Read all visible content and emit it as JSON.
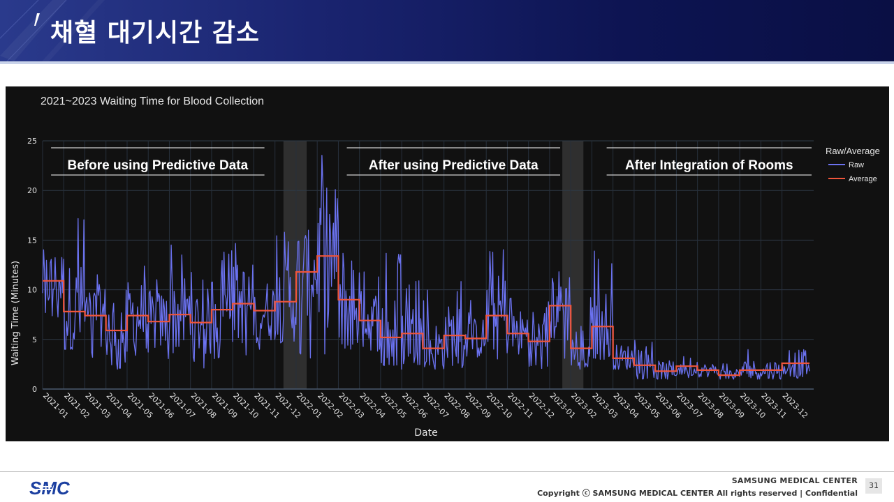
{
  "slide": {
    "title": "채혈 대기시간 감소",
    "footer_company": "SAMSUNG MEDICAL CENTER",
    "footer_copyright": "Copyright ⓒ SAMSUNG MEDICAL CENTER All rights reserved  |  Confidential",
    "page_number": "31",
    "logo_text": "SMC",
    "colors": {
      "banner": "#1a2470",
      "raw": "#6b72f0",
      "average": "#ef553b",
      "chart_bg": "#111111"
    }
  },
  "chart_data": {
    "type": "line",
    "title": "2021~2023 Waiting Time for Blood Collection",
    "xlabel": "Date",
    "ylabel": "Waiting Time (Minutes)",
    "ylim": [
      0,
      25
    ],
    "yticks": [
      0,
      5,
      10,
      15,
      20,
      25
    ],
    "xlim_months": [
      0,
      36.5
    ],
    "xticks": [
      "2021-01",
      "2021-02",
      "2021-03",
      "2021-04",
      "2021-05",
      "2021-06",
      "2021-07",
      "2021-08",
      "2021-09",
      "2021-10",
      "2021-11",
      "2021-12",
      "2022-01",
      "2022-02",
      "2022-03",
      "2022-04",
      "2022-05",
      "2022-06",
      "2022-07",
      "2022-08",
      "2022-09",
      "2022-10",
      "2022-11",
      "2022-12",
      "2023-01",
      "2023-02",
      "2023-03",
      "2023-04",
      "2023-05",
      "2023-06",
      "2023-07",
      "2023-08",
      "2023-09",
      "2023-10",
      "2023-11",
      "2023-12"
    ],
    "legend": {
      "title": "Raw/Average",
      "items": [
        "Raw",
        "Average"
      ],
      "position": "top-right"
    },
    "annotations": [
      {
        "text": "Before using Predictive Data",
        "x_start": 0.4,
        "x_end": 10.5
      },
      {
        "text": "After using Predictive Data",
        "x_start": 14.4,
        "x_end": 24.5
      },
      {
        "text": "After Integration of Rooms",
        "x_start": 26.7,
        "x_end": 36.4
      }
    ],
    "shaded_regions": [
      [
        11.4,
        12.5
      ],
      [
        24.6,
        25.6
      ]
    ],
    "series": [
      {
        "name": "Average",
        "type": "step",
        "segments": [
          {
            "x0": 0,
            "x1": 1,
            "value": 10.9
          },
          {
            "x0": 1,
            "x1": 2,
            "value": 7.8
          },
          {
            "x0": 2,
            "x1": 3,
            "value": 7.4
          },
          {
            "x0": 3,
            "x1": 4,
            "value": 5.9
          },
          {
            "x0": 4,
            "x1": 5,
            "value": 7.4
          },
          {
            "x0": 5,
            "x1": 6,
            "value": 6.8
          },
          {
            "x0": 6,
            "x1": 7,
            "value": 7.5
          },
          {
            "x0": 7,
            "x1": 8,
            "value": 6.7
          },
          {
            "x0": 8,
            "x1": 9,
            "value": 8.0
          },
          {
            "x0": 9,
            "x1": 10,
            "value": 8.6
          },
          {
            "x0": 10,
            "x1": 11,
            "value": 7.9
          },
          {
            "x0": 11,
            "x1": 12,
            "value": 8.8
          },
          {
            "x0": 12,
            "x1": 13,
            "value": 11.8
          },
          {
            "x0": 13,
            "x1": 14,
            "value": 13.4
          },
          {
            "x0": 14,
            "x1": 15,
            "value": 9.0
          },
          {
            "x0": 15,
            "x1": 16,
            "value": 6.9
          },
          {
            "x0": 16,
            "x1": 17,
            "value": 5.2
          },
          {
            "x0": 17,
            "x1": 18,
            "value": 5.6
          },
          {
            "x0": 18,
            "x1": 19,
            "value": 4.1
          },
          {
            "x0": 19,
            "x1": 20,
            "value": 5.4
          },
          {
            "x0": 20,
            "x1": 21,
            "value": 5.1
          },
          {
            "x0": 21,
            "x1": 22,
            "value": 7.4
          },
          {
            "x0": 22,
            "x1": 23,
            "value": 5.6
          },
          {
            "x0": 23,
            "x1": 24,
            "value": 4.8
          },
          {
            "x0": 24,
            "x1": 25,
            "value": 8.4
          },
          {
            "x0": 25,
            "x1": 26,
            "value": 4.1
          },
          {
            "x0": 26,
            "x1": 27,
            "value": 6.3
          },
          {
            "x0": 27,
            "x1": 28,
            "value": 3.1
          },
          {
            "x0": 28,
            "x1": 29,
            "value": 2.4
          },
          {
            "x0": 29,
            "x1": 30,
            "value": 1.8
          },
          {
            "x0": 30,
            "x1": 31,
            "value": 2.3
          },
          {
            "x0": 31,
            "x1": 32,
            "value": 1.9
          },
          {
            "x0": 32,
            "x1": 33,
            "value": 1.4
          },
          {
            "x0": 33,
            "x1": 34,
            "value": 1.9
          },
          {
            "x0": 34,
            "x1": 35,
            "value": 1.9
          },
          {
            "x0": 35,
            "x1": 36.3,
            "value": 2.6
          }
        ]
      },
      {
        "name": "Raw",
        "type": "line",
        "points_per_month": 22,
        "x_start": 0,
        "x_end": 36.3,
        "monthly_peaks": [
          16,
          18,
          12,
          14,
          13,
          12,
          15,
          12,
          14,
          15,
          13,
          16,
          16,
          24,
          20,
          12,
          14,
          11,
          10,
          11,
          9,
          15,
          10,
          9,
          14,
          10,
          14,
          6,
          5,
          4,
          4,
          3,
          3,
          4,
          4,
          5
        ],
        "monthly_troughs": [
          7,
          4,
          3,
          2,
          3,
          3,
          3,
          2,
          3,
          3,
          4,
          4,
          3,
          3,
          4,
          3,
          2,
          2,
          2,
          2,
          3,
          3,
          3,
          2,
          3,
          2,
          3,
          2,
          1,
          1,
          1,
          1,
          1,
          1,
          1,
          1
        ]
      }
    ]
  }
}
